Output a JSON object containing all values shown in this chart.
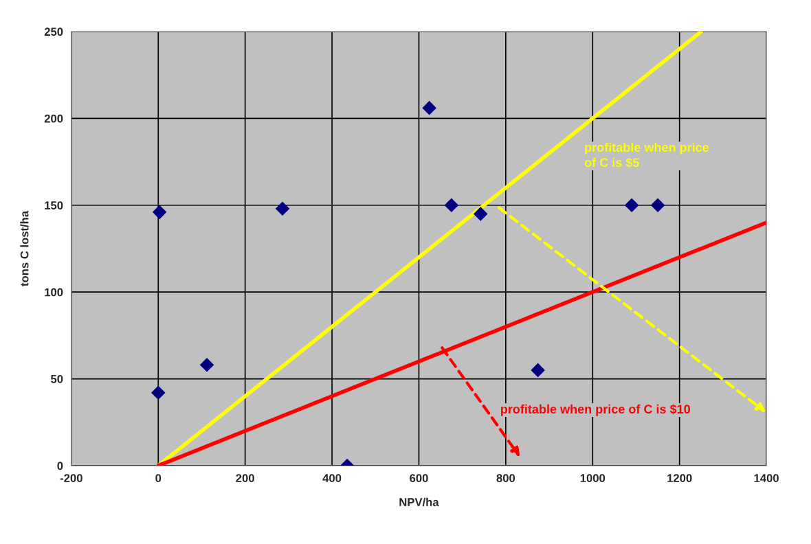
{
  "chart_data": {
    "type": "scatter",
    "xlabel": "NPV/ha",
    "ylabel": "tons C lost/ha",
    "xlim": [
      -200,
      1400
    ],
    "xticks": [
      -200,
      0,
      200,
      400,
      600,
      800,
      1000,
      1200,
      1400
    ],
    "ylim": [
      0,
      250
    ],
    "yticks": [
      0,
      50,
      100,
      150,
      200,
      250
    ],
    "grid": true,
    "legend": false,
    "series": [
      {
        "marker": "diamond",
        "color": "#000080",
        "x": [
          0,
          3,
          112,
          286,
          435,
          624,
          675,
          742,
          874,
          1090,
          1150
        ],
        "values": [
          42,
          146,
          58,
          148,
          0,
          206,
          150,
          145,
          55,
          150,
          150
        ]
      },
      {
        "type": "line",
        "color": "#ffff00",
        "x": [
          0,
          1250
        ],
        "values": [
          0,
          250
        ]
      },
      {
        "type": "line",
        "color": "#ff0000",
        "x": [
          0,
          1400
        ],
        "values": [
          0,
          140
        ]
      }
    ],
    "annotations": [
      "profitable when price\nof C is $5",
      "profitable when price of C is $10"
    ]
  }
}
